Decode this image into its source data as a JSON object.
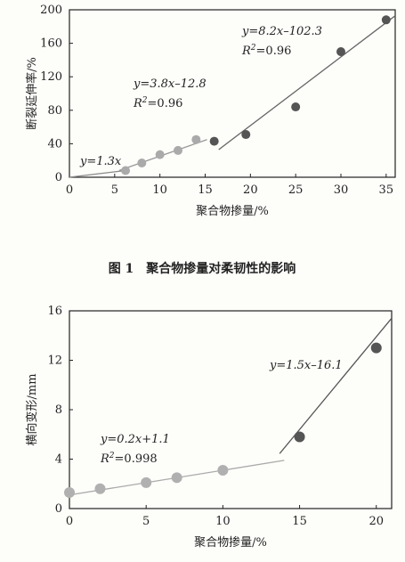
{
  "caption1": "图 1　聚合物掺量对柔韧性的影响",
  "chart_data": [
    {
      "type": "scatter",
      "xlabel": "聚合物掺量/%",
      "ylabel": "断裂延伸率/%",
      "xlim": [
        0,
        36
      ],
      "ylim": [
        0,
        200
      ],
      "xticks": [
        0,
        5,
        10,
        15,
        20,
        25,
        30,
        35
      ],
      "yticks": [
        0,
        40,
        80,
        120,
        160,
        200
      ],
      "series": [
        {
          "color": "#aaaaaa",
          "x": [
            6.2,
            8,
            10,
            12,
            14
          ],
          "y": [
            8,
            17,
            27,
            32,
            45
          ]
        },
        {
          "color": "#555555",
          "x": [
            16,
            19.5,
            25,
            30,
            35
          ],
          "y": [
            43,
            51,
            84,
            150,
            188
          ]
        }
      ],
      "fits": [
        {
          "label": "y=1.3x",
          "r2": "",
          "x": [
            0,
            6.2
          ],
          "slope": 1.3,
          "intercept": 0
        },
        {
          "label": "y=3.8x–12.8",
          "r2": "R2=0.96",
          "x": [
            5.5,
            15.2
          ],
          "slope": 3.8,
          "intercept": -12.8
        },
        {
          "label": "y=8.2x–102.3",
          "r2": "R2=0.96",
          "x": [
            16.5,
            36
          ],
          "slope": 8.2,
          "intercept": -102.3
        }
      ]
    },
    {
      "type": "scatter",
      "xlabel": "聚合物掺量/%",
      "ylabel": "横向变形/mm",
      "xlim": [
        0,
        21
      ],
      "ylim": [
        0,
        16
      ],
      "xticks": [
        0,
        5,
        10,
        15,
        20
      ],
      "yticks": [
        0,
        4,
        8,
        12,
        16
      ],
      "series": [
        {
          "color": "#b0b0b0",
          "x": [
            0,
            2,
            5,
            7,
            10
          ],
          "y": [
            1.3,
            1.6,
            2.1,
            2.5,
            3.1
          ]
        },
        {
          "color": "#555555",
          "x": [
            15,
            20
          ],
          "y": [
            5.8,
            13
          ]
        }
      ],
      "fits": [
        {
          "label": "y=0.2x+1.1",
          "r2": "R2=0.998",
          "x": [
            0,
            14
          ],
          "slope": 0.2,
          "intercept": 1.1
        },
        {
          "label": "y=1.5x–16.1",
          "r2": "",
          "x": [
            13.7,
            21
          ],
          "slope": 1.5,
          "intercept": -16.1
        }
      ]
    }
  ]
}
